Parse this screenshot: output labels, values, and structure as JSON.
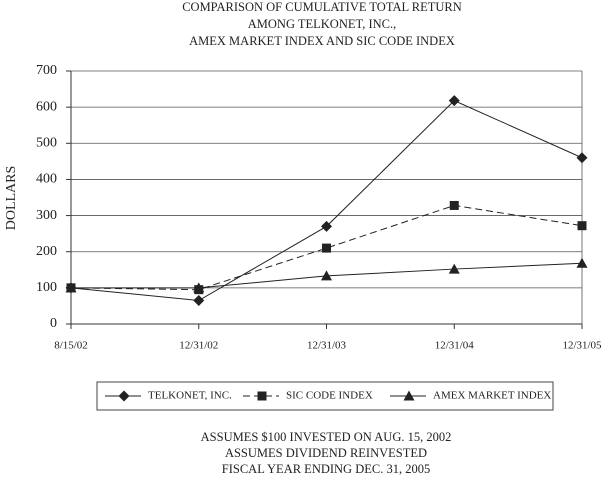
{
  "chart_data": {
    "type": "line",
    "title": [
      "COMPARISON OF CUMULATIVE TOTAL RETURN",
      "AMONG TELKONET, INC.,",
      "AMEX MARKET INDEX AND SIC CODE INDEX"
    ],
    "y_label": "DOLLARS",
    "categories": [
      "8/15/02",
      "12/31/02",
      "12/31/03",
      "12/31/04",
      "12/31/05"
    ],
    "series": [
      {
        "name": "TELKONET, INC.",
        "color": "#222222",
        "marker": "diamond",
        "dashed": false,
        "values": [
          100,
          65,
          270,
          618,
          460
        ]
      },
      {
        "name": "SIC CODE INDEX",
        "color": "#222222",
        "marker": "square",
        "dashed": true,
        "values": [
          100,
          95,
          210,
          328,
          272
        ]
      },
      {
        "name": "AMEX MARKET INDEX",
        "color": "#222222",
        "marker": "triangle",
        "dashed": false,
        "values": [
          100,
          100,
          133,
          152,
          168
        ]
      }
    ],
    "ylim": [
      0,
      700
    ],
    "yticks": [
      0,
      100,
      200,
      300,
      400,
      500,
      600,
      700
    ],
    "grid": true,
    "notes": [
      "ASSUMES $100 INVESTED ON AUG. 15, 2002",
      "ASSUMES DIVIDEND REINVESTED",
      "FISCAL YEAR ENDING DEC. 31, 2005"
    ]
  }
}
